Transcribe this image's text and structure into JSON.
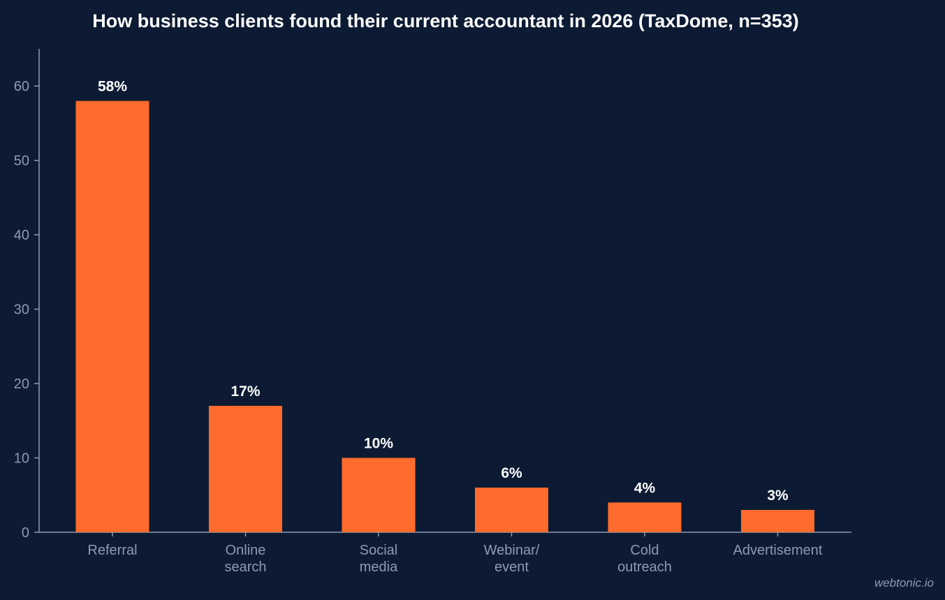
{
  "chart_data": {
    "type": "bar",
    "title": "How business clients found their current accountant in 2026 (TaxDome, n=353)",
    "categories": [
      [
        "Referral"
      ],
      [
        "Online",
        "search"
      ],
      [
        "Social",
        "media"
      ],
      [
        "Webinar/",
        "event"
      ],
      [
        "Cold",
        "outreach"
      ],
      [
        "Advertisement"
      ]
    ],
    "values": [
      58,
      17,
      10,
      6,
      4,
      3
    ],
    "data_labels": [
      "58%",
      "17%",
      "10%",
      "6%",
      "4%",
      "3%"
    ],
    "ylim": [
      0,
      65
    ],
    "yticks": [
      0,
      10,
      20,
      30,
      40,
      50,
      60
    ],
    "xlabel": "",
    "ylabel": "",
    "grid": false,
    "colors": {
      "background": "#0c1b33",
      "bar": "#ff6b2c",
      "axis": "#8c9bb3",
      "tick_text": "#8c9bb3",
      "label_text": "#ffffff"
    }
  },
  "watermark": "webtonic.io"
}
